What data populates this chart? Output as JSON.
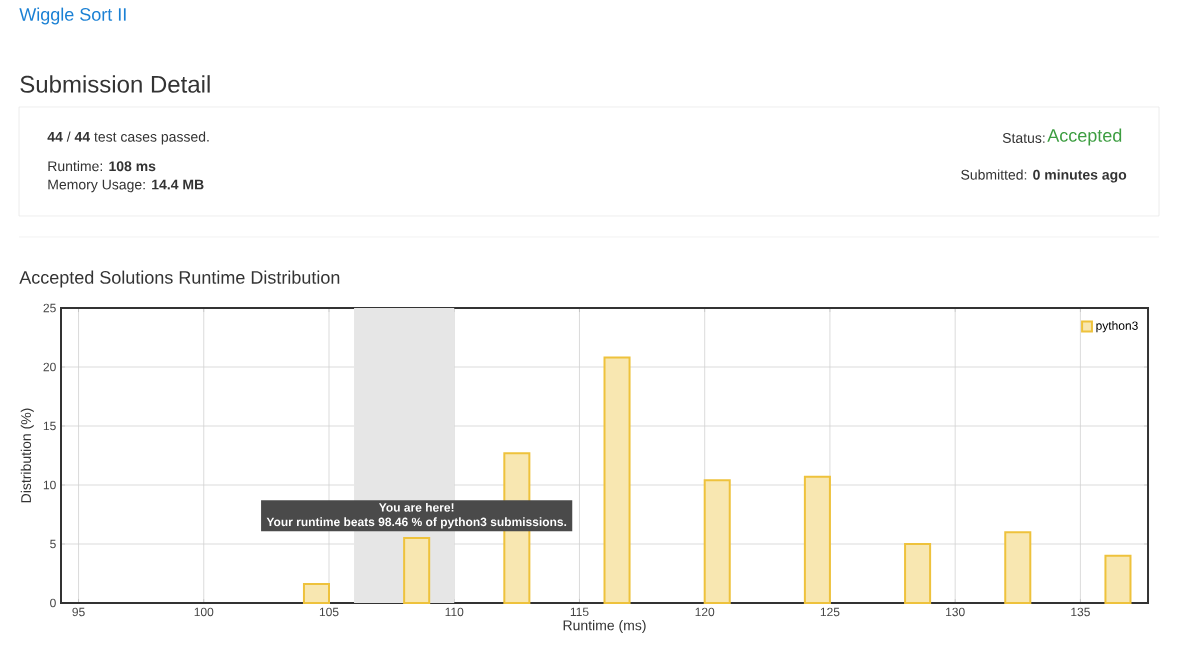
{
  "chart_data": {
    "type": "bar",
    "title": "Accepted Solutions Runtime Distribution",
    "xlabel": "Runtime (ms)",
    "ylabel": "Distribution (%)",
    "x": [
      104.5,
      108.5,
      112.5,
      116.5,
      120.5,
      124.5,
      128.5,
      132.5,
      136.5
    ],
    "series": [
      {
        "name": "python3",
        "color": "#eec23c",
        "values": [
          1.6,
          5.5,
          12.7,
          20.8,
          10.4,
          10.7,
          5.0,
          6.0,
          4.0
        ]
      }
    ],
    "xlim": [
      94.3,
      137.7
    ],
    "ylim": [
      0,
      25
    ],
    "xticks": [
      95,
      100,
      105,
      110,
      115,
      120,
      125,
      130,
      135
    ],
    "yticks": [
      0,
      5,
      10,
      15,
      20,
      25
    ],
    "bands": [
      {
        "axis": "x",
        "from": 106,
        "to": 110,
        "color": "#e6e6e6"
      }
    ],
    "grid": true,
    "legend": "top right",
    "annotations": [
      {
        "text": "You are here!",
        "x": 108.5,
        "y": 5.5
      },
      "Your runtime beats 98.46 % of python3 submissions.",
      "Wiggle Sort II",
      "Submission Detail",
      "**44** / **44** test cases passed.",
      "Runtime: **108 ms**",
      "Memory Usage: **14.4 MB**",
      "Status:",
      "Accepted",
      "Submitted: **0 minutes ago**"
    ]
  }
}
